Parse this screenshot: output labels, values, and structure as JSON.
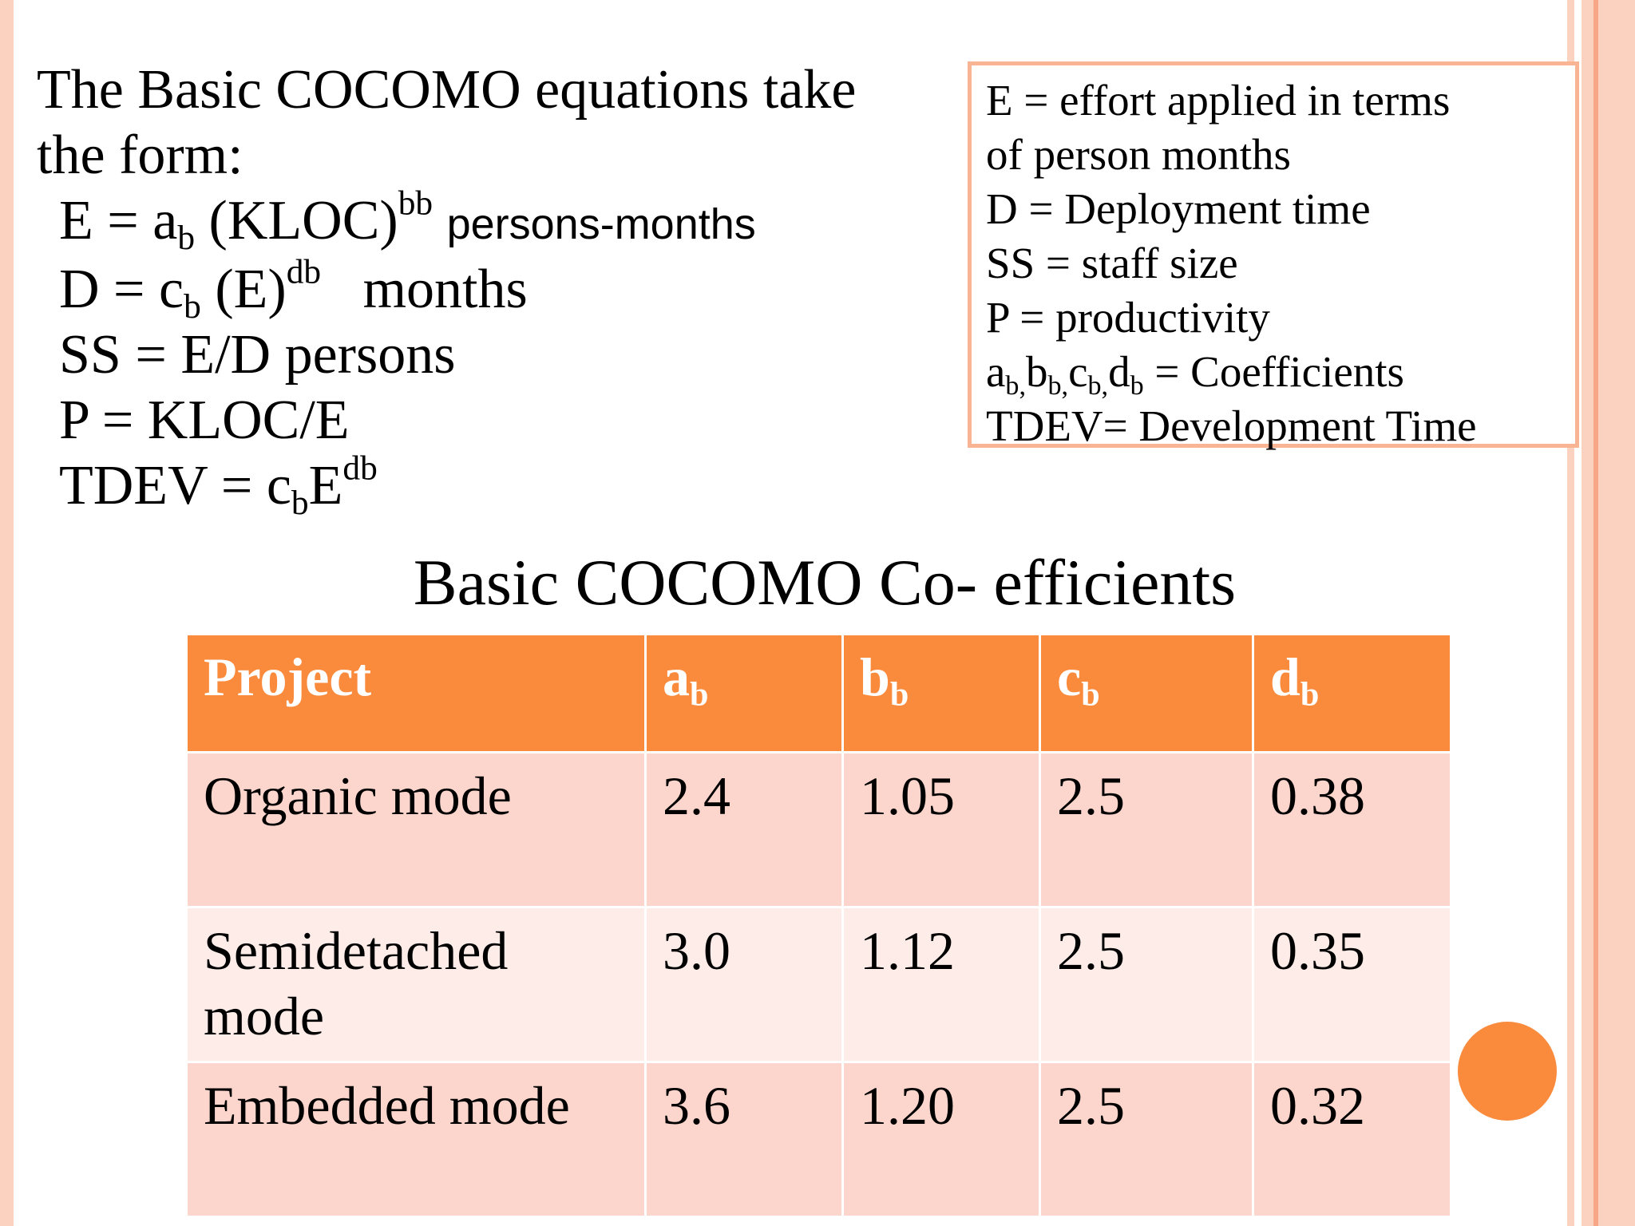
{
  "intro": {
    "line1": "The Basic COCOMO equations take",
    "line2": "the form:"
  },
  "equations": {
    "effort": {
      "lhs": "E = a",
      "sub": "b",
      "mid": " (KLOC)",
      "sup": "bb",
      "unit": "persons-months"
    },
    "duration": {
      "lhs": "D = c",
      "sub": "b",
      "mid": " (E)",
      "sup": "db",
      "unit": "months"
    },
    "staff": "SS = E/D persons",
    "productivity": "P = KLOC/E",
    "tdev": {
      "lhs": "TDEV = c",
      "sub": "b",
      "mid": "E",
      "sup": "db"
    }
  },
  "legend": {
    "line1": "E = effort applied in terms",
    "line2": "of person months",
    "line3": "D = Deployment time",
    "line4": "SS = staff size",
    "line5": "P = productivity",
    "coef": {
      "a": "a",
      "b": "b",
      "c": "c",
      "d": "d",
      "sub": "b",
      "sep": ",",
      "rest": " = Coefficients"
    },
    "line7": "TDEV= Development Time"
  },
  "table": {
    "title": "Basic COCOMO Co- efficients",
    "headers": [
      {
        "main": "Project",
        "sub": ""
      },
      {
        "main": "a",
        "sub": "b"
      },
      {
        "main": "b",
        "sub": "b"
      },
      {
        "main": "c",
        "sub": "b"
      },
      {
        "main": "d",
        "sub": "b"
      }
    ],
    "rows": [
      [
        "Organic mode",
        "2.4",
        "1.05",
        "2.5",
        "0.38"
      ],
      [
        "Semidetached mode",
        "3.0",
        "1.12",
        "2.5",
        "0.35"
      ],
      [
        "Embedded mode",
        "3.6",
        "1.20",
        "2.5",
        "0.32"
      ]
    ]
  },
  "colors": {
    "accent": "#fa8a3c",
    "frame": "#fbd2c0",
    "row_dark": "#fcd6cc",
    "row_light": "#fdece8"
  }
}
